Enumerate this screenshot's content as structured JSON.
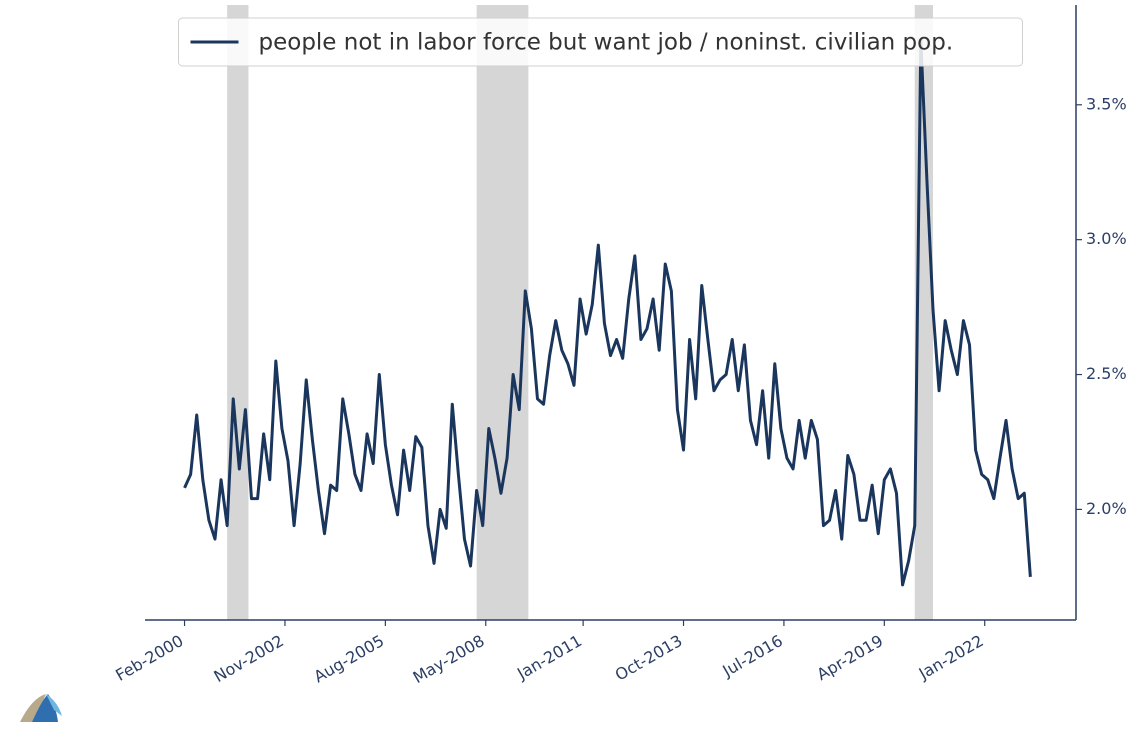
{
  "chart_data": {
    "type": "line",
    "x": [
      "2000-02",
      "2000-04",
      "2000-06",
      "2000-08",
      "2000-10",
      "2000-12",
      "2001-02",
      "2001-04",
      "2001-06",
      "2001-08",
      "2001-10",
      "2001-12",
      "2002-02",
      "2002-04",
      "2002-06",
      "2002-08",
      "2002-10",
      "2002-12",
      "2003-02",
      "2003-04",
      "2003-06",
      "2003-08",
      "2003-10",
      "2003-12",
      "2004-02",
      "2004-04",
      "2004-06",
      "2004-08",
      "2004-10",
      "2004-12",
      "2005-02",
      "2005-04",
      "2005-06",
      "2005-08",
      "2005-10",
      "2005-12",
      "2006-02",
      "2006-04",
      "2006-06",
      "2006-08",
      "2006-10",
      "2006-12",
      "2007-02",
      "2007-04",
      "2007-06",
      "2007-08",
      "2007-10",
      "2007-12",
      "2008-02",
      "2008-04",
      "2008-06",
      "2008-08",
      "2008-10",
      "2008-12",
      "2009-02",
      "2009-04",
      "2009-06",
      "2009-08",
      "2009-10",
      "2009-12",
      "2010-02",
      "2010-04",
      "2010-06",
      "2010-08",
      "2010-10",
      "2010-12",
      "2011-02",
      "2011-04",
      "2011-06",
      "2011-08",
      "2011-10",
      "2011-12",
      "2012-02",
      "2012-04",
      "2012-06",
      "2012-08",
      "2012-10",
      "2012-12",
      "2013-02",
      "2013-04",
      "2013-06",
      "2013-08",
      "2013-10",
      "2013-12",
      "2014-02",
      "2014-04",
      "2014-06",
      "2014-08",
      "2014-10",
      "2014-12",
      "2015-02",
      "2015-04",
      "2015-06",
      "2015-08",
      "2015-10",
      "2015-12",
      "2016-02",
      "2016-04",
      "2016-06",
      "2016-08",
      "2016-10",
      "2016-12",
      "2017-02",
      "2017-04",
      "2017-06",
      "2017-08",
      "2017-10",
      "2017-12",
      "2018-02",
      "2018-04",
      "2018-06",
      "2018-08",
      "2018-10",
      "2018-12",
      "2019-02",
      "2019-04",
      "2019-06",
      "2019-08",
      "2019-10",
      "2019-12",
      "2020-02",
      "2020-04",
      "2020-06",
      "2020-08",
      "2020-10",
      "2020-12",
      "2021-02",
      "2021-04",
      "2021-06",
      "2021-08",
      "2021-10",
      "2021-12",
      "2022-02",
      "2022-04",
      "2022-06",
      "2022-08",
      "2022-10",
      "2022-12",
      "2023-02",
      "2023-04"
    ],
    "series": [
      {
        "name": "people not in labor force but want job / noninst. civilian pop.",
        "color": "#1b365d",
        "values": [
          2.08,
          2.13,
          2.35,
          2.11,
          1.96,
          1.89,
          2.11,
          1.94,
          2.41,
          2.15,
          2.37,
          2.04,
          2.04,
          2.28,
          2.11,
          2.55,
          2.3,
          2.18,
          1.94,
          2.17,
          2.48,
          2.26,
          2.07,
          1.91,
          2.09,
          2.07,
          2.41,
          2.28,
          2.13,
          2.07,
          2.28,
          2.17,
          2.5,
          2.24,
          2.09,
          1.98,
          2.22,
          2.07,
          2.27,
          2.23,
          1.94,
          1.8,
          2.0,
          1.93,
          2.39,
          2.13,
          1.89,
          1.79,
          2.07,
          1.94,
          2.3,
          2.19,
          2.06,
          2.19,
          2.5,
          2.37,
          2.81,
          2.67,
          2.41,
          2.39,
          2.57,
          2.7,
          2.59,
          2.54,
          2.46,
          2.78,
          2.65,
          2.76,
          2.98,
          2.69,
          2.57,
          2.63,
          2.56,
          2.78,
          2.94,
          2.63,
          2.67,
          2.78,
          2.59,
          2.91,
          2.81,
          2.37,
          2.22,
          2.63,
          2.41,
          2.83,
          2.63,
          2.44,
          2.48,
          2.5,
          2.63,
          2.44,
          2.61,
          2.33,
          2.24,
          2.44,
          2.19,
          2.54,
          2.3,
          2.19,
          2.15,
          2.33,
          2.19,
          2.33,
          2.26,
          1.94,
          1.96,
          2.07,
          1.89,
          2.2,
          2.13,
          1.96,
          1.96,
          2.09,
          1.91,
          2.11,
          2.15,
          2.06,
          1.72,
          1.81,
          1.94,
          3.74,
          3.22,
          2.74,
          2.44,
          2.7,
          2.59,
          2.5,
          2.7,
          2.61,
          2.22,
          2.13,
          2.11,
          2.04,
          2.19,
          2.33,
          2.15,
          2.04,
          2.06,
          1.75
        ]
      }
    ],
    "xlim": [
      "1999-01",
      "2024-07"
    ],
    "xticks": [
      {
        "value": "2000-02",
        "label": "Feb-2000"
      },
      {
        "value": "2002-11",
        "label": "Nov-2002"
      },
      {
        "value": "2005-08",
        "label": "Aug-2005"
      },
      {
        "value": "2008-05",
        "label": "May-2008"
      },
      {
        "value": "2011-01",
        "label": "Jan-2011"
      },
      {
        "value": "2013-10",
        "label": "Oct-2013"
      },
      {
        "value": "2016-07",
        "label": "Jul-2016"
      },
      {
        "value": "2019-04",
        "label": "Apr-2019"
      },
      {
        "value": "2022-01",
        "label": "Jan-2022"
      }
    ],
    "ylim": [
      1.59,
      3.87
    ],
    "yticks": [
      {
        "value": 2.0,
        "label": "2.0%"
      },
      {
        "value": 2.5,
        "label": "2.5%"
      },
      {
        "value": 3.0,
        "label": "3.0%"
      },
      {
        "value": 3.5,
        "label": "3.5%"
      }
    ],
    "y_axis_side": "right",
    "legend": "upper center",
    "grid": false,
    "recessions": [
      {
        "start": "2001-04",
        "end": "2001-11"
      },
      {
        "start": "2008-02",
        "end": "2009-07"
      },
      {
        "start": "2020-02",
        "end": "2020-08"
      }
    ],
    "recession_color": "#d6d6d6"
  }
}
